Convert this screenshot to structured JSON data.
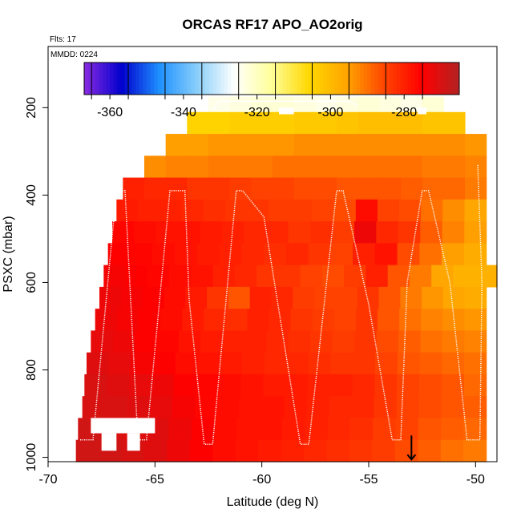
{
  "chart_data": {
    "type": "heatmap",
    "title": "ORCAS RF17 APO_AO2orig",
    "flights_note": "Flts: 17",
    "date_note": "MMDD: 0224",
    "xlabel": "Latitude (deg N)",
    "ylabel": "PSXC (mbar)",
    "xlim": [
      -70,
      -49
    ],
    "ylim": [
      1010,
      60
    ],
    "x_ticks": [
      "-70",
      "-65",
      "-60",
      "-55",
      "-50"
    ],
    "y_ticks": [
      "200",
      "400",
      "600",
      "800",
      "1000"
    ],
    "colorbar": {
      "range": [
        -367,
        -265
      ],
      "ticks": [
        "-360",
        "-340",
        "-320",
        "-300",
        "-280"
      ],
      "tick_values": [
        -360,
        -340,
        -320,
        -300,
        -280
      ],
      "colors": [
        "#8a2be2",
        "#0000cd",
        "#1e90ff",
        "#87cefa",
        "#ffffff",
        "#ffff99",
        "#ffd700",
        "#ffa500",
        "#ff4500",
        "#ff0000",
        "#b22222"
      ]
    },
    "rows": [
      {
        "p": 200,
        "lat0": -62.5,
        "lat1": -51.5,
        "values": [
          -324,
          -323,
          -322,
          -322,
          -323,
          -324,
          -323,
          -322,
          -323,
          -324,
          -322
        ]
      },
      {
        "p": 235,
        "lat0": -63.5,
        "lat1": -50.5,
        "values": [
          -305,
          -305,
          -304,
          -304,
          -304,
          -303,
          -303,
          -302,
          -301,
          -301,
          -301,
          -302,
          -302
        ]
      },
      {
        "p": 285,
        "lat0": -64.5,
        "lat1": -49.5,
        "values": [
          -295,
          -295,
          -294,
          -294,
          -294,
          -294,
          -293,
          -293,
          -293,
          -293,
          -293,
          -293,
          -293,
          -293,
          -294
        ]
      },
      {
        "p": 335,
        "lat0": -65.5,
        "lat1": -49.5,
        "values": [
          -293,
          -292,
          -292,
          -291,
          -291,
          -291,
          -290,
          -290,
          -290,
          -290,
          -290,
          -290,
          -290,
          -291,
          -291,
          -292
        ]
      },
      {
        "p": 385,
        "lat0": -66.5,
        "lat1": -49.5,
        "values": [
          -280,
          -281,
          -281,
          -283,
          -283,
          -284,
          -285,
          -285,
          -286,
          -286,
          -287,
          -287,
          -287,
          -288,
          -289,
          -289,
          -291
        ]
      },
      {
        "p": 435,
        "lat0": -66.8,
        "lat1": -49.5,
        "values": [
          -279,
          -280,
          -280,
          -281,
          -282,
          -283,
          -283,
          -284,
          -284,
          -285,
          -286,
          -277,
          -285,
          -286,
          -290,
          -293,
          -296
        ]
      },
      {
        "p": 485,
        "lat0": -67.0,
        "lat1": -49.5,
        "values": [
          -276,
          -277,
          -278,
          -278,
          -279,
          -280,
          -281,
          -281,
          -283,
          -282,
          -284,
          -273,
          -281,
          -283,
          -288,
          -292,
          -295
        ]
      },
      {
        "p": 535,
        "lat0": -67.2,
        "lat1": -49.5,
        "values": [
          -275,
          -276,
          -277,
          -278,
          -279,
          -280,
          -281,
          -282,
          -281,
          -283,
          -285,
          -280,
          -278,
          -286,
          -290,
          -295,
          -297
        ]
      },
      {
        "p": 585,
        "lat0": -67.4,
        "lat1": -49.0,
        "values": [
          -274,
          -275,
          -276,
          -277,
          -278,
          -280,
          -281,
          -283,
          -283,
          -285,
          -286,
          -284,
          -280,
          -287,
          -291,
          -296,
          -298,
          -298
        ]
      },
      {
        "p": 635,
        "lat0": -67.6,
        "lat1": -49.5,
        "values": [
          -273,
          -274,
          -275,
          -277,
          -279,
          -283,
          -287,
          -280,
          -281,
          -284,
          -285,
          -285,
          -283,
          -287,
          -291,
          -294,
          -296,
          -297
        ]
      },
      {
        "p": 685,
        "lat0": -67.8,
        "lat1": -49.5,
        "values": [
          -273,
          -274,
          -275,
          -277,
          -279,
          -281,
          -282,
          -280,
          -281,
          -283,
          -284,
          -285,
          -283,
          -287,
          -290,
          -292,
          -293,
          -294
        ]
      },
      {
        "p": 735,
        "lat0": -68.0,
        "lat1": -49.5,
        "values": [
          -272,
          -273,
          -275,
          -276,
          -278,
          -279,
          -280,
          -280,
          -281,
          -282,
          -283,
          -284,
          -283,
          -286,
          -288,
          -290,
          -291,
          -292
        ]
      },
      {
        "p": 785,
        "lat0": -68.2,
        "lat1": -49.5,
        "values": [
          -271,
          -272,
          -274,
          -275,
          -277,
          -278,
          -279,
          -280,
          -281,
          -281,
          -282,
          -283,
          -283,
          -285,
          -287,
          -288,
          -289,
          -290
        ]
      },
      {
        "p": 835,
        "lat0": -68.3,
        "lat1": -49.5,
        "values": [
          -270,
          -271,
          -272,
          -273,
          -275,
          -276,
          -277,
          -278,
          -279,
          -279,
          -280,
          -280,
          -281,
          -283,
          -285,
          -286,
          -287,
          -289
        ]
      },
      {
        "p": 885,
        "lat0": -68.4,
        "lat1": -49.5,
        "values": [
          -270,
          -270,
          -271,
          -272,
          -274,
          -276,
          -277,
          -278,
          -278,
          -279,
          -280,
          -281,
          -281,
          -283,
          -285,
          -286,
          -287,
          -288
        ]
      },
      {
        "p": 935,
        "lat0": -68.6,
        "lat1": -49.5,
        "values": [
          -269,
          -270,
          -271,
          -271,
          -273,
          -275,
          -277,
          -278,
          -278,
          -279,
          -280,
          -281,
          -282,
          -284,
          -285,
          -287,
          -288,
          -289
        ]
      },
      {
        "p": 985,
        "lat0": -68.7,
        "lat1": -49.5,
        "values": [
          -269,
          -269,
          -270,
          -271,
          -273,
          -275,
          -277,
          -278,
          -279,
          -280,
          -281,
          -282,
          -283,
          -284,
          -286,
          -288,
          -290,
          -291
        ]
      }
    ],
    "gaps": [
      {
        "lat0": -68.0,
        "lat1": -65.0,
        "p0": 910,
        "p1": 945
      },
      {
        "lat0": -67.5,
        "lat1": -66.8,
        "p0": 945,
        "p1": 985
      },
      {
        "lat0": -66.3,
        "lat1": -65.7,
        "p0": 945,
        "p1": 985
      },
      {
        "lat0": -59.2,
        "lat1": -58.5,
        "p0": 200,
        "p1": 215
      },
      {
        "lat0": -52.7,
        "lat1": -52.3,
        "p0": 200,
        "p1": 215
      }
    ],
    "flight_track": [
      {
        "lat": -68.5,
        "p": 960
      },
      {
        "lat": -67.9,
        "p": 960
      },
      {
        "lat": -66.8,
        "p": 390
      },
      {
        "lat": -66.4,
        "p": 390
      },
      {
        "lat": -65.8,
        "p": 960
      },
      {
        "lat": -65.4,
        "p": 960
      },
      {
        "lat": -64.3,
        "p": 390
      },
      {
        "lat": -63.6,
        "p": 390
      },
      {
        "lat": -63.4,
        "p": 640
      },
      {
        "lat": -62.7,
        "p": 970
      },
      {
        "lat": -62.3,
        "p": 970
      },
      {
        "lat": -61.2,
        "p": 390
      },
      {
        "lat": -60.9,
        "p": 390
      },
      {
        "lat": -59.9,
        "p": 450
      },
      {
        "lat": -58.2,
        "p": 970
      },
      {
        "lat": -57.8,
        "p": 970
      },
      {
        "lat": -56.5,
        "p": 390
      },
      {
        "lat": -56.2,
        "p": 390
      },
      {
        "lat": -55.0,
        "p": 650
      },
      {
        "lat": -53.9,
        "p": 960
      },
      {
        "lat": -53.5,
        "p": 960
      },
      {
        "lat": -53.2,
        "p": 600
      },
      {
        "lat": -52.5,
        "p": 390
      },
      {
        "lat": -52.2,
        "p": 390
      },
      {
        "lat": -51.2,
        "p": 600
      },
      {
        "lat": -50.4,
        "p": 960
      },
      {
        "lat": -49.8,
        "p": 960
      },
      {
        "lat": -49.7,
        "p": 600
      },
      {
        "lat": -49.9,
        "p": 330
      }
    ],
    "upper_track": [
      {
        "lat": -62.3,
        "p": 205
      },
      {
        "lat": -62.0,
        "p": 185
      },
      {
        "lat": -58.5,
        "p": 185
      },
      {
        "lat": -57.6,
        "p": 185
      },
      {
        "lat": -56.0,
        "p": 185
      },
      {
        "lat": -55.5,
        "p": 195
      }
    ],
    "arrow_lat": -53.0,
    "arrow_p": [
      950,
      1005
    ]
  }
}
